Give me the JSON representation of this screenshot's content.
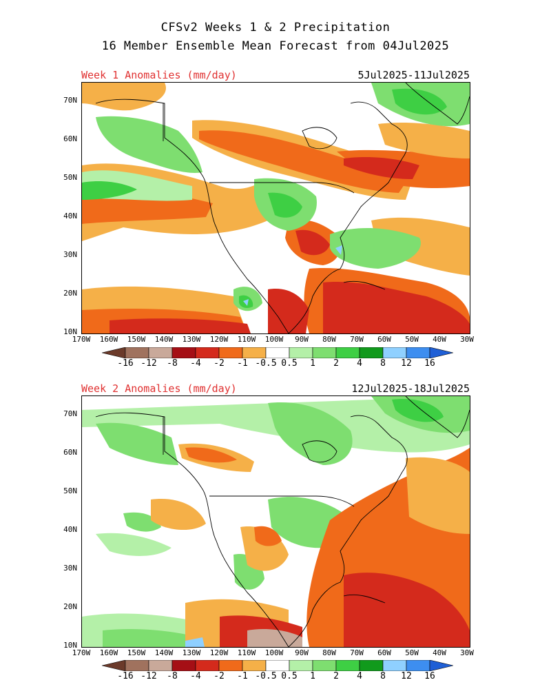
{
  "header": {
    "line1": "CFSv2 Weeks 1 & 2 Precipitation",
    "line2": "16 Member Ensemble Mean Forecast from 04Jul2025"
  },
  "panels": [
    {
      "title": "Week 1 Anomalies (mm/day)",
      "dates": "5Jul2025-11Jul2025"
    },
    {
      "title": "Week 2 Anomalies (mm/day)",
      "dates": "12Jul2025-18Jul2025"
    }
  ],
  "axes": {
    "lat_labels": [
      "70N",
      "60N",
      "50N",
      "40N",
      "30N",
      "20N",
      "10N"
    ],
    "lon_labels": [
      "170W",
      "160W",
      "150W",
      "140W",
      "130W",
      "120W",
      "110W",
      "100W",
      "90W",
      "80W",
      "70W",
      "60W",
      "50W",
      "40W",
      "30W"
    ]
  },
  "colorbar": {
    "labels": [
      "-16",
      "-12",
      "-8",
      "-4",
      "-2",
      "-1",
      "-0.5",
      "0.5",
      "1",
      "2",
      "4",
      "8",
      "12",
      "16"
    ],
    "colors": [
      "#6b3a2a",
      "#a0725e",
      "#c9a99a",
      "#a50f15",
      "#d42a1c",
      "#f06a1a",
      "#f5b048",
      "#ffffff",
      "#b4f0a8",
      "#7ede70",
      "#3ecf44",
      "#119a1c",
      "#8fd0ff",
      "#3d8ef0",
      "#1f5fd6"
    ]
  },
  "map_colors": {
    "dry_light": "#f5b048",
    "dry_mid": "#f06a1a",
    "dry_strong": "#d42a1c",
    "dry_extreme": "#a50f15",
    "dry_brown": "#c9a99a",
    "wet_light": "#b4f0a8",
    "wet_mid": "#7ede70",
    "wet_strong": "#3ecf44",
    "wet_dark": "#119a1c",
    "wet_blue": "#8fd0ff"
  }
}
